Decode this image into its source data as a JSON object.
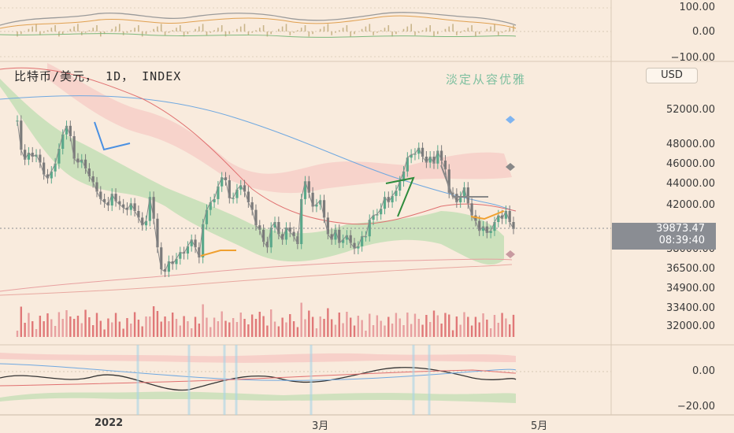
{
  "title": "比特币/美元， 1D， INDEX",
  "watermark": "淡定从容优雅",
  "currency": "USD",
  "last_price": "39873.47",
  "countdown": "08:39:40",
  "colors": {
    "background": "#f9ebdd",
    "up": "#5aa88a",
    "down": "#7a7a7a",
    "volume": "#e08080",
    "ma_fast": "#c7a57a",
    "ma_slow": "#e07070",
    "ma_long": "#6fa8e0",
    "ichimoku_green": "#a8d8a0",
    "ichimoku_red": "#f5b5b5"
  },
  "top_axis_labels": [
    "100.00",
    "0.00",
    "−100.00"
  ],
  "price_axis_labels": [
    "52000.00",
    "48000.00",
    "46000.00",
    "44000.00",
    "42000.00",
    "38000.00",
    "36500.00",
    "34900.00",
    "33400.00",
    "32000.00"
  ],
  "bottom_axis_labels": [
    "0.00",
    "−20.00"
  ],
  "x_labels": [
    "2022",
    "3月",
    "5月"
  ],
  "chart_data": {
    "type": "line",
    "title": "比特币/美元， 1D， INDEX",
    "xlabel": "",
    "ylabel": "",
    "ylim": [
      31000,
      55000
    ],
    "price_ticks": [
      52000,
      48000,
      46000,
      44000,
      42000,
      38000,
      36500,
      34900,
      33400,
      32000
    ],
    "x_ticks": [
      "2022",
      "3月",
      "5月"
    ],
    "last_value": 39873.47,
    "series": [
      {
        "values": [
          50800,
          47500,
          46500,
          47200,
          46800,
          47000,
          46200,
          45000,
          44600,
          45300,
          46100,
          47600,
          49200,
          50200,
          49000,
          46600,
          46200,
          46500,
          45600,
          44800,
          44200,
          43300,
          42600,
          42300,
          42000,
          43100,
          42400,
          42100,
          41800,
          41600,
          42200,
          41500,
          40900,
          40200,
          40600,
          42800,
          40800,
          38200,
          36500,
          36300,
          37100,
          36900,
          37300,
          37800,
          37700,
          38300,
          38900,
          38200,
          37400,
          40300,
          41600,
          42300,
          42600,
          43800,
          44700,
          44400,
          42700,
          42700,
          43500,
          43900,
          43300,
          42300,
          41600,
          40200,
          39800,
          38700,
          38200,
          40000,
          40500,
          39400,
          38900,
          40000,
          39600,
          39200,
          38500,
          42600,
          44300,
          43200,
          41900,
          42100,
          42500,
          40900,
          39400,
          38900,
          39800,
          38600,
          38900,
          39300,
          38600,
          38100,
          38300,
          39200,
          39200,
          40700,
          41100,
          41200,
          41700,
          42800,
          42300,
          42900,
          43400,
          44300,
          45300,
          46700,
          47000,
          47100,
          47700,
          46800,
          46200,
          46800,
          46100,
          47400,
          46400,
          45500,
          43200,
          43100,
          42300,
          42800,
          43700,
          42200,
          41100,
          40600,
          39700,
          40100,
          39500,
          39700,
          40500,
          41100,
          40800,
          41500,
          40500,
          39873
        ]
      }
    ]
  }
}
